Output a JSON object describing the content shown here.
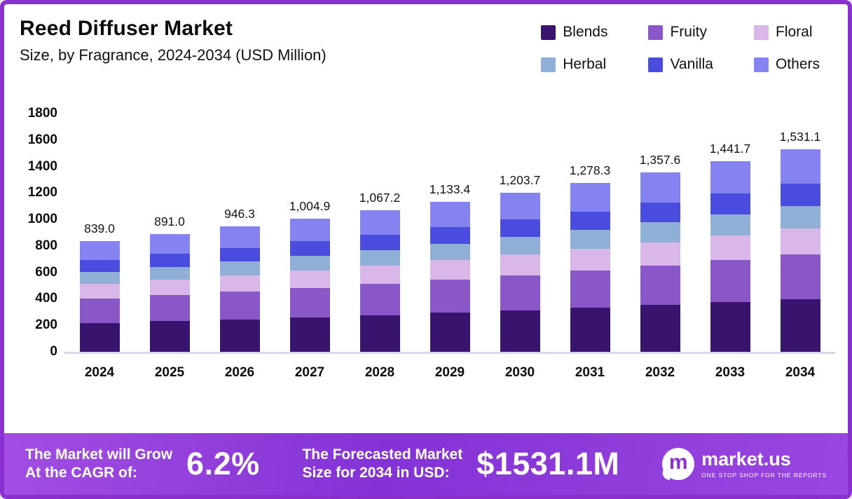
{
  "header": {
    "title": "Reed Diffuser Market",
    "subtitle": "Size, by Fragrance, 2024-2034 (USD Million)"
  },
  "legend": [
    {
      "label": "Blends",
      "color": "#38146e"
    },
    {
      "label": "Fruity",
      "color": "#8a57c9"
    },
    {
      "label": "Floral",
      "color": "#d9b7e8"
    },
    {
      "label": "Herbal",
      "color": "#8fafd6"
    },
    {
      "label": "Vanilla",
      "color": "#4a4ce0"
    },
    {
      "label": "Others",
      "color": "#8583f2"
    }
  ],
  "chart_data": {
    "type": "bar",
    "stacked": true,
    "title": "Reed Diffuser Market Size, by Fragrance, 2024-2034 (USD Million)",
    "categories": [
      "2024",
      "2025",
      "2026",
      "2027",
      "2028",
      "2029",
      "2030",
      "2031",
      "2032",
      "2033",
      "2034"
    ],
    "totals": [
      839.0,
      891.0,
      946.3,
      1004.9,
      1067.2,
      1133.4,
      1203.7,
      1278.3,
      1357.6,
      1441.7,
      1531.1
    ],
    "total_labels": [
      "839.0",
      "891.0",
      "946.3",
      "1,004.9",
      "1,067.2",
      "1,133.4",
      "1,203.7",
      "1,278.3",
      "1,357.6",
      "1,441.7",
      "1,531.1"
    ],
    "ylabel": "USD Million",
    "ylim": [
      0,
      1800
    ],
    "yticks": [
      0,
      200,
      400,
      600,
      800,
      1000,
      1200,
      1400,
      1600,
      1800
    ],
    "legend_position": "top-right",
    "grid": false,
    "series": [
      {
        "name": "Blends",
        "color": "#38146e",
        "values": [
          218.1,
          231.7,
          246.0,
          261.3,
          277.5,
          294.7,
          313.0,
          332.4,
          353.0,
          374.8,
          398.1
        ]
      },
      {
        "name": "Fruity",
        "color": "#8a57c9",
        "values": [
          184.6,
          196.0,
          208.2,
          221.1,
          234.8,
          249.3,
          264.8,
          281.2,
          298.7,
          317.2,
          336.8
        ]
      },
      {
        "name": "Floral",
        "color": "#d9b7e8",
        "values": [
          109.1,
          115.8,
          123.0,
          130.6,
          138.7,
          147.3,
          156.5,
          166.2,
          176.5,
          187.4,
          199.0
        ]
      },
      {
        "name": "Herbal",
        "color": "#8fafd6",
        "values": [
          92.3,
          98.0,
          104.1,
          110.5,
          117.4,
          124.7,
          132.4,
          140.6,
          149.3,
          158.6,
          168.4
        ]
      },
      {
        "name": "Vanilla",
        "color": "#4a4ce0",
        "values": [
          92.3,
          98.0,
          104.1,
          110.5,
          117.4,
          124.7,
          132.4,
          140.6,
          149.3,
          158.6,
          168.4
        ]
      },
      {
        "name": "Others",
        "color": "#8583f2",
        "values": [
          142.6,
          151.5,
          160.9,
          170.9,
          181.4,
          192.7,
          204.6,
          217.3,
          230.8,
          245.1,
          260.4
        ]
      }
    ]
  },
  "footer": {
    "cagr_line1": "The Market will Grow",
    "cagr_line2": "At the CAGR of:",
    "cagr_value": "6.2%",
    "forecast_line1": "The Forecasted Market",
    "forecast_line2": "Size for 2034 in USD:",
    "forecast_value": "$1531.1M",
    "brand_icon_letter": "m",
    "brand_name": "market.us",
    "brand_tagline": "ONE STOP SHOP FOR THE REPORTS"
  }
}
